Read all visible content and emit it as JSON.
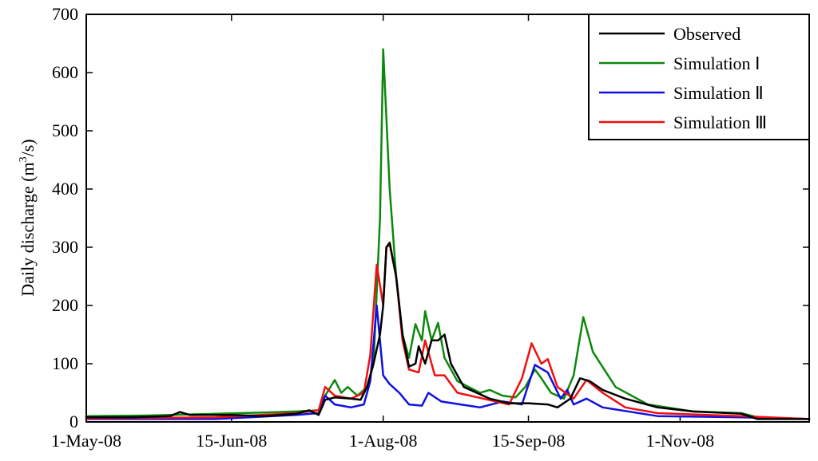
{
  "chart_data": {
    "type": "line",
    "title": "",
    "xlabel": "",
    "ylabel": "Daily discharge (m³/s)",
    "ylabel_parts": {
      "main": "Daily discharge (m",
      "sup": "3",
      "tail": "/s)"
    },
    "ylim": [
      0,
      700
    ],
    "yticks": [
      0,
      100,
      200,
      300,
      400,
      500,
      600,
      700
    ],
    "xlim": [
      "2008-05-01",
      "2008-12-11"
    ],
    "xticks": [
      {
        "date": "2008-05-01",
        "label": "1-May-08"
      },
      {
        "date": "2008-06-15",
        "label": "15-Jun-08"
      },
      {
        "date": "2008-08-01",
        "label": "1-Aug-08"
      },
      {
        "date": "2008-09-15",
        "label": "15-Sep-08"
      },
      {
        "date": "2008-11-01",
        "label": "1-Nov-08"
      }
    ],
    "grid": false,
    "legend_position": "top-right",
    "series": [
      {
        "name": "Observed",
        "color": "#000000",
        "points": [
          [
            "2008-05-01",
            8
          ],
          [
            "2008-05-15",
            8
          ],
          [
            "2008-05-27",
            10
          ],
          [
            "2008-05-30",
            17
          ],
          [
            "2008-06-02",
            12
          ],
          [
            "2008-06-15",
            12
          ],
          [
            "2008-06-25",
            10
          ],
          [
            "2008-07-05",
            14
          ],
          [
            "2008-07-09",
            20
          ],
          [
            "2008-07-12",
            12
          ],
          [
            "2008-07-14",
            38
          ],
          [
            "2008-07-17",
            42
          ],
          [
            "2008-07-22",
            40
          ],
          [
            "2008-07-25",
            38
          ],
          [
            "2008-07-27",
            60
          ],
          [
            "2008-07-29",
            100
          ],
          [
            "2008-07-31",
            150
          ],
          [
            "2008-08-01",
            200
          ],
          [
            "2008-08-02",
            300
          ],
          [
            "2008-08-03",
            308
          ],
          [
            "2008-08-05",
            250
          ],
          [
            "2008-08-07",
            150
          ],
          [
            "2008-08-09",
            95
          ],
          [
            "2008-08-11",
            100
          ],
          [
            "2008-08-12",
            130
          ],
          [
            "2008-08-14",
            100
          ],
          [
            "2008-08-16",
            140
          ],
          [
            "2008-08-18",
            140
          ],
          [
            "2008-08-20",
            150
          ],
          [
            "2008-08-22",
            100
          ],
          [
            "2008-08-26",
            60
          ],
          [
            "2008-09-03",
            40
          ],
          [
            "2008-09-09",
            32
          ],
          [
            "2008-09-15",
            32
          ],
          [
            "2008-09-21",
            30
          ],
          [
            "2008-09-24",
            25
          ],
          [
            "2008-09-28",
            40
          ],
          [
            "2008-10-01",
            75
          ],
          [
            "2008-10-04",
            70
          ],
          [
            "2008-10-08",
            55
          ],
          [
            "2008-10-15",
            40
          ],
          [
            "2008-10-25",
            25
          ],
          [
            "2008-11-05",
            18
          ],
          [
            "2008-11-20",
            14
          ],
          [
            "2008-11-25",
            5
          ],
          [
            "2008-12-11",
            5
          ]
        ]
      },
      {
        "name": "Simulation Ⅰ",
        "color": "#0c880c",
        "points": [
          [
            "2008-05-01",
            10
          ],
          [
            "2008-05-20",
            11
          ],
          [
            "2008-06-10",
            14
          ],
          [
            "2008-06-25",
            16
          ],
          [
            "2008-07-05",
            18
          ],
          [
            "2008-07-12",
            20
          ],
          [
            "2008-07-14",
            45
          ],
          [
            "2008-07-17",
            72
          ],
          [
            "2008-07-19",
            50
          ],
          [
            "2008-07-21",
            60
          ],
          [
            "2008-07-24",
            45
          ],
          [
            "2008-07-27",
            60
          ],
          [
            "2008-07-29",
            100
          ],
          [
            "2008-07-31",
            350
          ],
          [
            "2008-08-01",
            640
          ],
          [
            "2008-08-03",
            400
          ],
          [
            "2008-08-05",
            250
          ],
          [
            "2008-08-07",
            150
          ],
          [
            "2008-08-09",
            110
          ],
          [
            "2008-08-11",
            168
          ],
          [
            "2008-08-13",
            140
          ],
          [
            "2008-08-14",
            190
          ],
          [
            "2008-08-16",
            140
          ],
          [
            "2008-08-18",
            170
          ],
          [
            "2008-08-20",
            110
          ],
          [
            "2008-08-24",
            70
          ],
          [
            "2008-08-31",
            50
          ],
          [
            "2008-09-03",
            55
          ],
          [
            "2008-09-07",
            45
          ],
          [
            "2008-09-11",
            42
          ],
          [
            "2008-09-14",
            60
          ],
          [
            "2008-09-17",
            90
          ],
          [
            "2008-09-19",
            75
          ],
          [
            "2008-09-22",
            50
          ],
          [
            "2008-09-26",
            40
          ],
          [
            "2008-09-29",
            80
          ],
          [
            "2008-10-02",
            180
          ],
          [
            "2008-10-05",
            120
          ],
          [
            "2008-10-12",
            60
          ],
          [
            "2008-10-22",
            30
          ],
          [
            "2008-11-05",
            18
          ],
          [
            "2008-11-20",
            15
          ],
          [
            "2008-11-25",
            8
          ],
          [
            "2008-12-11",
            5
          ]
        ]
      },
      {
        "name": "Simulation Ⅱ",
        "color": "#1010e0",
        "points": [
          [
            "2008-05-01",
            5
          ],
          [
            "2008-06-10",
            5
          ],
          [
            "2008-07-05",
            12
          ],
          [
            "2008-07-12",
            15
          ],
          [
            "2008-07-14",
            45
          ],
          [
            "2008-07-17",
            30
          ],
          [
            "2008-07-22",
            25
          ],
          [
            "2008-07-26",
            30
          ],
          [
            "2008-07-28",
            70
          ],
          [
            "2008-07-30",
            200
          ],
          [
            "2008-08-01",
            80
          ],
          [
            "2008-08-03",
            65
          ],
          [
            "2008-08-06",
            50
          ],
          [
            "2008-08-09",
            30
          ],
          [
            "2008-08-13",
            28
          ],
          [
            "2008-08-15",
            50
          ],
          [
            "2008-08-19",
            35
          ],
          [
            "2008-08-25",
            30
          ],
          [
            "2008-08-31",
            25
          ],
          [
            "2008-09-07",
            35
          ],
          [
            "2008-09-13",
            30
          ],
          [
            "2008-09-17",
            98
          ],
          [
            "2008-09-21",
            85
          ],
          [
            "2008-09-25",
            40
          ],
          [
            "2008-09-27",
            55
          ],
          [
            "2008-09-29",
            30
          ],
          [
            "2008-10-03",
            40
          ],
          [
            "2008-10-08",
            25
          ],
          [
            "2008-10-25",
            10
          ],
          [
            "2008-11-20",
            8
          ],
          [
            "2008-12-11",
            5
          ]
        ]
      },
      {
        "name": "Simulation Ⅲ",
        "color": "#ee1010",
        "points": [
          [
            "2008-05-01",
            6
          ],
          [
            "2008-06-10",
            8
          ],
          [
            "2008-07-05",
            15
          ],
          [
            "2008-07-12",
            20
          ],
          [
            "2008-07-14",
            60
          ],
          [
            "2008-07-17",
            45
          ],
          [
            "2008-07-22",
            40
          ],
          [
            "2008-07-26",
            50
          ],
          [
            "2008-07-28",
            115
          ],
          [
            "2008-07-30",
            270
          ],
          [
            "2008-08-01",
            200
          ],
          [
            "2008-08-02",
            300
          ],
          [
            "2008-08-03",
            305
          ],
          [
            "2008-08-05",
            250
          ],
          [
            "2008-08-07",
            140
          ],
          [
            "2008-08-09",
            90
          ],
          [
            "2008-08-12",
            85
          ],
          [
            "2008-08-14",
            140
          ],
          [
            "2008-08-17",
            80
          ],
          [
            "2008-08-20",
            80
          ],
          [
            "2008-08-24",
            50
          ],
          [
            "2008-09-01",
            40
          ],
          [
            "2008-09-09",
            30
          ],
          [
            "2008-09-13",
            75
          ],
          [
            "2008-09-16",
            135
          ],
          [
            "2008-09-19",
            100
          ],
          [
            "2008-09-21",
            108
          ],
          [
            "2008-09-24",
            60
          ],
          [
            "2008-09-29",
            40
          ],
          [
            "2008-10-03",
            72
          ],
          [
            "2008-10-08",
            50
          ],
          [
            "2008-10-15",
            25
          ],
          [
            "2008-10-25",
            15
          ],
          [
            "2008-11-20",
            10
          ],
          [
            "2008-12-11",
            5
          ]
        ]
      }
    ]
  }
}
